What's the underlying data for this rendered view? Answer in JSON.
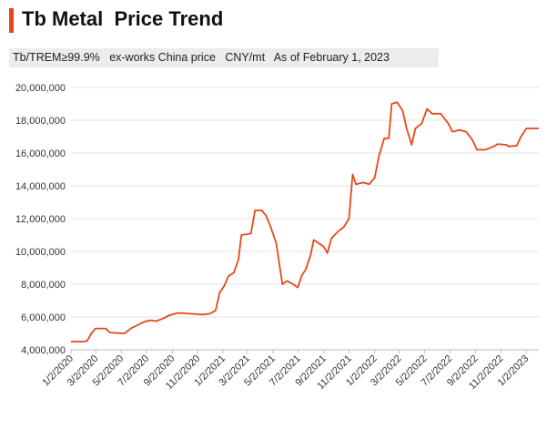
{
  "header": {
    "title": "Tb Metal  Price Trend",
    "subtitle": "Tb/TREM≥99.9%   ex-works China price   CNY/mt   As of February 1, 2023"
  },
  "colors": {
    "accent": "#e8471a",
    "line": "#e8471a",
    "grid": "#e3e3e3",
    "subtitle_bg": "#ececec"
  },
  "chart_data": {
    "type": "line",
    "title": "Tb Metal  Price Trend",
    "xlabel": "",
    "ylabel": "",
    "ylim": [
      4000000,
      20000000
    ],
    "xlim": [
      "2020-01-02",
      "2023-02-01"
    ],
    "grid": true,
    "y_ticks": [
      4000000,
      6000000,
      8000000,
      10000000,
      12000000,
      14000000,
      16000000,
      18000000,
      20000000
    ],
    "y_tick_labels": [
      "4,000,000",
      "6,000,000",
      "8,000,000",
      "10,000,000",
      "12,000,000",
      "14,000,000",
      "16,000,000",
      "18,000,000",
      "20,000,000"
    ],
    "x_ticks": [
      "2020-01-02",
      "2020-03-02",
      "2020-05-02",
      "2020-07-02",
      "2020-09-02",
      "2020-11-02",
      "2021-01-02",
      "2021-03-02",
      "2021-05-02",
      "2021-07-02",
      "2021-09-02",
      "2021-11-02",
      "2022-01-02",
      "2022-03-02",
      "2022-05-02",
      "2022-07-02",
      "2022-09-02",
      "2022-11-02",
      "2023-01-02"
    ],
    "x_tick_labels": [
      "1/2/2020",
      "3/2/2020",
      "5/2/2020",
      "7/2/2020",
      "9/2/2020",
      "11/2/2020",
      "1/2/2021",
      "3/2/2021",
      "5/2/2021",
      "7/2/2021",
      "9/2/2021",
      "11/2/2021",
      "1/2/2022",
      "3/2/2022",
      "5/2/2022",
      "7/2/2022",
      "9/2/2022",
      "11/2/2022",
      "1/2/2023"
    ],
    "series": [
      {
        "values": [
          [
            "2020-01-02",
            4500000
          ],
          [
            "2020-02-01",
            4500000
          ],
          [
            "2020-02-10",
            4550000
          ],
          [
            "2020-02-20",
            5000000
          ],
          [
            "2020-03-01",
            5300000
          ],
          [
            "2020-03-25",
            5300000
          ],
          [
            "2020-04-05",
            5050000
          ],
          [
            "2020-05-10",
            5000000
          ],
          [
            "2020-05-25",
            5300000
          ],
          [
            "2020-06-10",
            5500000
          ],
          [
            "2020-06-25",
            5700000
          ],
          [
            "2020-07-10",
            5800000
          ],
          [
            "2020-07-25",
            5750000
          ],
          [
            "2020-08-10",
            5900000
          ],
          [
            "2020-08-25",
            6100000
          ],
          [
            "2020-09-15",
            6250000
          ],
          [
            "2020-10-15",
            6200000
          ],
          [
            "2020-11-15",
            6150000
          ],
          [
            "2020-12-01",
            6200000
          ],
          [
            "2020-12-15",
            6400000
          ],
          [
            "2020-12-25",
            7500000
          ],
          [
            "2021-01-05",
            7900000
          ],
          [
            "2021-01-15",
            8500000
          ],
          [
            "2021-01-28",
            8700000
          ],
          [
            "2021-02-08",
            9500000
          ],
          [
            "2021-02-15",
            11000000
          ],
          [
            "2021-02-28",
            11050000
          ],
          [
            "2021-03-10",
            11100000
          ],
          [
            "2021-03-20",
            12500000
          ],
          [
            "2021-04-05",
            12500000
          ],
          [
            "2021-04-15",
            12200000
          ],
          [
            "2021-04-25",
            11600000
          ],
          [
            "2021-05-10",
            10500000
          ],
          [
            "2021-05-25",
            8000000
          ],
          [
            "2021-06-05",
            8200000
          ],
          [
            "2021-06-20",
            8000000
          ],
          [
            "2021-07-01",
            7800000
          ],
          [
            "2021-07-10",
            8500000
          ],
          [
            "2021-07-20",
            8900000
          ],
          [
            "2021-08-01",
            9800000
          ],
          [
            "2021-08-08",
            10700000
          ],
          [
            "2021-08-20",
            10500000
          ],
          [
            "2021-09-01",
            10300000
          ],
          [
            "2021-09-10",
            9900000
          ],
          [
            "2021-09-20",
            10800000
          ],
          [
            "2021-10-05",
            11200000
          ],
          [
            "2021-10-20",
            11500000
          ],
          [
            "2021-11-01",
            12000000
          ],
          [
            "2021-11-10",
            14700000
          ],
          [
            "2021-11-18",
            14100000
          ],
          [
            "2021-12-05",
            14200000
          ],
          [
            "2021-12-20",
            14100000
          ],
          [
            "2022-01-02",
            14500000
          ],
          [
            "2022-01-12",
            15800000
          ],
          [
            "2022-01-25",
            16900000
          ],
          [
            "2022-02-05",
            16900000
          ],
          [
            "2022-02-12",
            19000000
          ],
          [
            "2022-02-25",
            19100000
          ],
          [
            "2022-03-10",
            18600000
          ],
          [
            "2022-03-20",
            17500000
          ],
          [
            "2022-04-01",
            16500000
          ],
          [
            "2022-04-10",
            17500000
          ],
          [
            "2022-04-25",
            17800000
          ],
          [
            "2022-05-08",
            18700000
          ],
          [
            "2022-05-20",
            18400000
          ],
          [
            "2022-06-10",
            18400000
          ],
          [
            "2022-06-28",
            17800000
          ],
          [
            "2022-07-08",
            17300000
          ],
          [
            "2022-07-25",
            17400000
          ],
          [
            "2022-08-10",
            17300000
          ],
          [
            "2022-08-25",
            16800000
          ],
          [
            "2022-09-05",
            16200000
          ],
          [
            "2022-09-25",
            16200000
          ],
          [
            "2022-10-15",
            16400000
          ],
          [
            "2022-10-25",
            16550000
          ],
          [
            "2022-11-15",
            16500000
          ],
          [
            "2022-11-20",
            16400000
          ],
          [
            "2022-12-10",
            16450000
          ],
          [
            "2022-12-20",
            17000000
          ],
          [
            "2023-01-02",
            17500000
          ],
          [
            "2023-02-01",
            17500000
          ]
        ]
      }
    ]
  }
}
